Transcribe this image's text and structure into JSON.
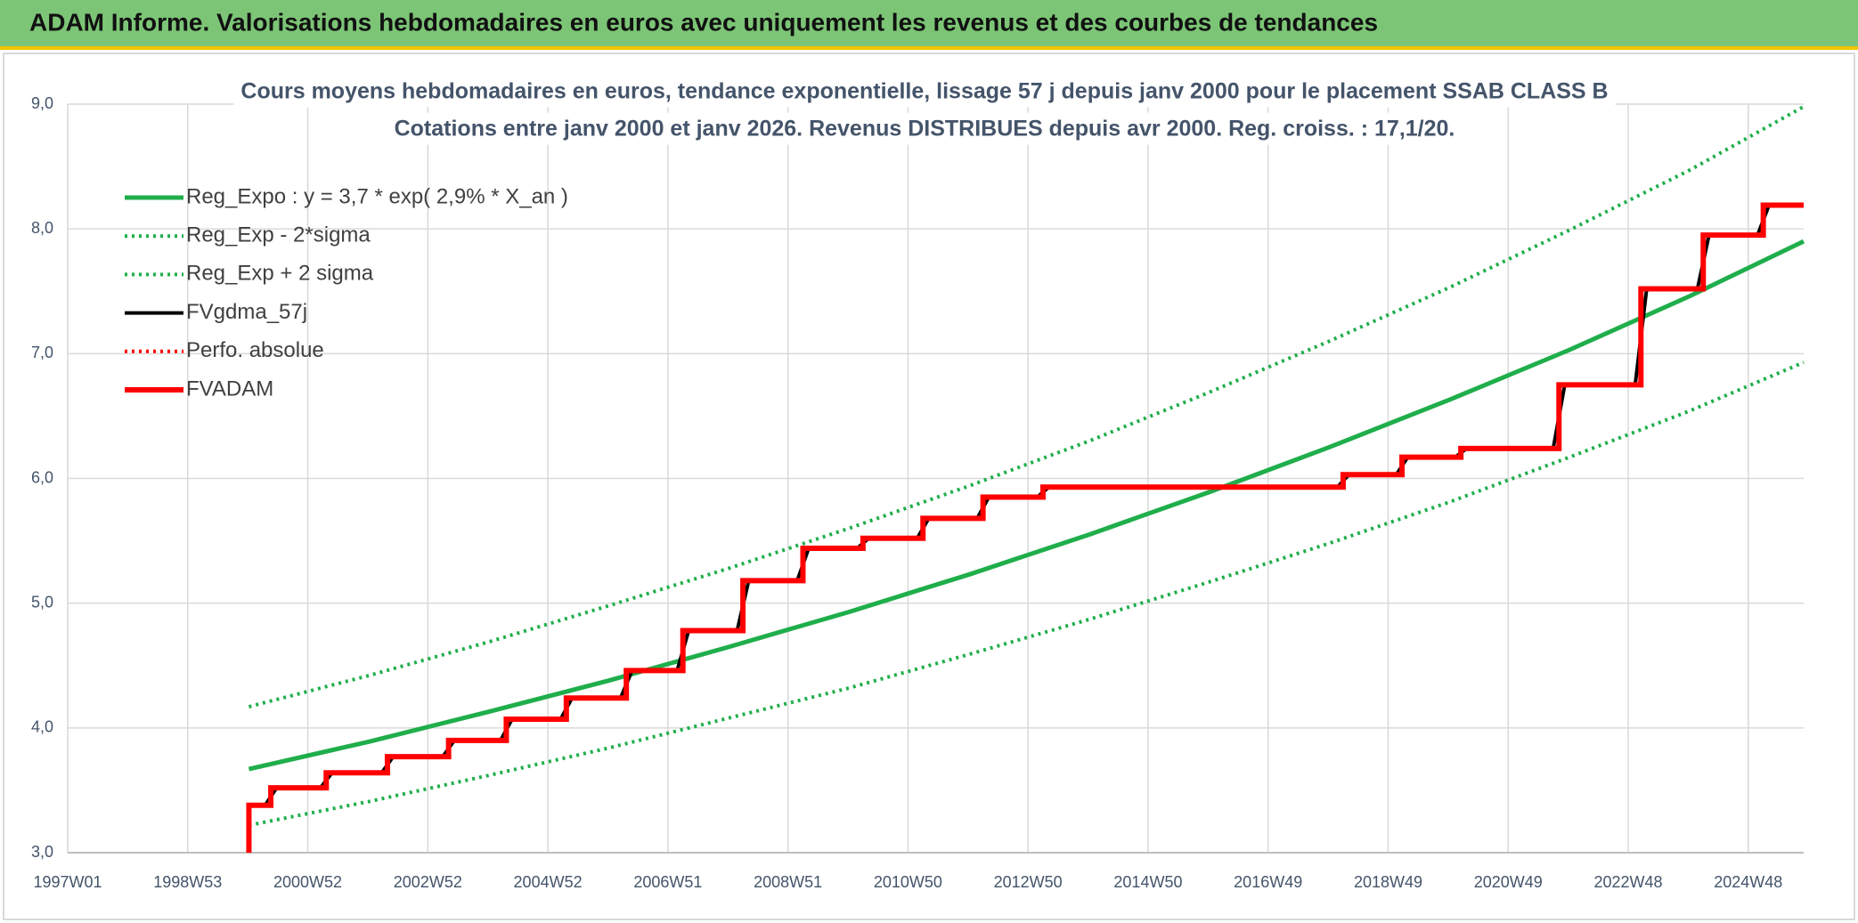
{
  "banner": {
    "title": "ADAM Informe. Valorisations hebdomadaires en euros avec uniquement les revenus et des courbes de tendances"
  },
  "chart_data": {
    "type": "line",
    "title": "Cours moyens hebdomadaires en euros, tendance exponentielle, lissage 57 j depuis janv 2000 pour le placement SSAB CLASS B",
    "subtitle": "Cotations entre janv 2000 et janv 2026. Revenus DISTRIBUES depuis avr 2000. Reg. croiss. : 17,1/20.",
    "xlim": [
      0,
      1504
    ],
    "xticks": [
      {
        "value": 0,
        "label": "1997W01"
      },
      {
        "value": 104,
        "label": "1998W53"
      },
      {
        "value": 208,
        "label": "2000W52"
      },
      {
        "value": 312,
        "label": "2002W52"
      },
      {
        "value": 416,
        "label": "2004W52"
      },
      {
        "value": 520,
        "label": "2006W51"
      },
      {
        "value": 624,
        "label": "2008W51"
      },
      {
        "value": 728,
        "label": "2010W50"
      },
      {
        "value": 832,
        "label": "2012W50"
      },
      {
        "value": 936,
        "label": "2014W50"
      },
      {
        "value": 1040,
        "label": "2016W49"
      },
      {
        "value": 1144,
        "label": "2018W49"
      },
      {
        "value": 1248,
        "label": "2020W49"
      },
      {
        "value": 1352,
        "label": "2022W48"
      },
      {
        "value": 1456,
        "label": "2024W48"
      }
    ],
    "ylim": [
      3,
      9
    ],
    "yticks": [
      {
        "value": 3,
        "label": "3,0"
      },
      {
        "value": 4,
        "label": "4,0"
      },
      {
        "value": 5,
        "label": "5,0"
      },
      {
        "value": 6,
        "label": "6,0"
      },
      {
        "value": 7,
        "label": "7,0"
      },
      {
        "value": 8,
        "label": "8,0"
      },
      {
        "value": 9,
        "label": "9,0"
      }
    ],
    "grid": true,
    "series": [
      {
        "name": "Reg_Expo : y = 3,7 * exp( 2,9% *  X_an )",
        "color": "#1fae4b",
        "style": "solid",
        "width": 5,
        "x": [
          157,
          261,
          365,
          469,
          573,
          677,
          781,
          885,
          989,
          1093,
          1197,
          1301,
          1405,
          1504
        ],
        "values": [
          3.67,
          3.89,
          4.13,
          4.38,
          4.65,
          4.93,
          5.23,
          5.55,
          5.89,
          6.25,
          6.63,
          7.03,
          7.46,
          7.9
        ]
      },
      {
        "name": "Reg_Exp - 2*sigma",
        "color": "#1fae4b",
        "style": "dotted",
        "width": 4,
        "x": [
          157,
          261,
          365,
          469,
          573,
          677,
          781,
          885,
          989,
          1093,
          1197,
          1301,
          1405,
          1504
        ],
        "values": [
          3.22,
          3.41,
          3.62,
          3.84,
          4.08,
          4.32,
          4.59,
          4.87,
          5.17,
          5.48,
          5.81,
          6.17,
          6.54,
          6.93
        ]
      },
      {
        "name": "Reg_Exp + 2 sigma",
        "color": "#1fae4b",
        "style": "dotted",
        "width": 4,
        "x": [
          157,
          261,
          365,
          469,
          573,
          677,
          781,
          885,
          989,
          1093,
          1197,
          1301,
          1405,
          1504
        ],
        "values": [
          4.17,
          4.42,
          4.69,
          4.98,
          5.28,
          5.6,
          5.94,
          6.3,
          6.69,
          7.1,
          7.53,
          7.99,
          8.47,
          8.98
        ]
      },
      {
        "name": "FVgdma_57j",
        "color": "#000000",
        "style": "solid",
        "width": 4,
        "x": [
          157,
          171,
          181,
          219,
          229,
          272,
          282,
          325,
          335,
          375,
          385,
          427,
          437,
          479,
          489,
          528,
          538,
          580,
          590,
          632,
          642,
          684,
          694,
          736,
          746,
          788,
          798,
          840,
          850,
          1100,
          1110,
          1151,
          1161,
          1202,
          1212,
          1287,
          1297,
          1358,
          1368,
          1412,
          1422,
          1464,
          1474,
          1504
        ],
        "values": [
          3.38,
          3.38,
          3.52,
          3.52,
          3.64,
          3.64,
          3.77,
          3.77,
          3.9,
          3.9,
          4.07,
          4.07,
          4.24,
          4.24,
          4.46,
          4.46,
          4.78,
          4.78,
          5.18,
          5.18,
          5.44,
          5.44,
          5.52,
          5.52,
          5.68,
          5.68,
          5.85,
          5.85,
          5.93,
          5.93,
          6.03,
          6.03,
          6.17,
          6.17,
          6.24,
          6.24,
          6.75,
          6.75,
          7.52,
          7.52,
          7.95,
          7.95,
          8.19,
          8.19
        ]
      },
      {
        "name": "Perfo. absolue",
        "color": "#ff0000",
        "style": "dotted",
        "width": 4,
        "x": [
          157,
          157,
          176,
          176,
          224,
          224,
          277,
          277,
          330,
          330,
          380,
          380,
          432,
          432,
          484,
          484,
          533,
          533,
          585,
          585,
          637,
          637,
          689,
          689,
          741,
          741,
          793,
          793,
          845,
          845,
          1105,
          1105,
          1156,
          1156,
          1207,
          1207,
          1292,
          1292,
          1363,
          1363,
          1417,
          1417,
          1469,
          1469,
          1504
        ],
        "values": [
          3.0,
          3.38,
          3.38,
          3.52,
          3.52,
          3.64,
          3.64,
          3.77,
          3.77,
          3.9,
          3.9,
          4.07,
          4.07,
          4.24,
          4.24,
          4.46,
          4.46,
          4.78,
          4.78,
          5.18,
          5.18,
          5.44,
          5.44,
          5.52,
          5.52,
          5.68,
          5.68,
          5.85,
          5.85,
          5.93,
          5.93,
          6.03,
          6.03,
          6.17,
          6.17,
          6.24,
          6.24,
          6.75,
          6.75,
          7.52,
          7.52,
          7.95,
          7.95,
          8.19,
          8.19
        ]
      },
      {
        "name": "FVADAM",
        "color": "#ff0000",
        "style": "solid",
        "width": 6,
        "x": [
          157,
          157,
          176,
          176,
          224,
          224,
          277,
          277,
          330,
          330,
          380,
          380,
          432,
          432,
          484,
          484,
          533,
          533,
          585,
          585,
          637,
          637,
          689,
          689,
          741,
          741,
          793,
          793,
          845,
          845,
          1105,
          1105,
          1156,
          1156,
          1207,
          1207,
          1292,
          1292,
          1363,
          1363,
          1417,
          1417,
          1469,
          1469,
          1504
        ],
        "values": [
          3.0,
          3.38,
          3.38,
          3.52,
          3.52,
          3.64,
          3.64,
          3.77,
          3.77,
          3.9,
          3.9,
          4.07,
          4.07,
          4.24,
          4.24,
          4.46,
          4.46,
          4.78,
          4.78,
          5.18,
          5.18,
          5.44,
          5.44,
          5.52,
          5.52,
          5.68,
          5.68,
          5.85,
          5.85,
          5.93,
          5.93,
          6.03,
          6.03,
          6.17,
          6.17,
          6.24,
          6.24,
          6.75,
          6.75,
          7.52,
          7.52,
          7.95,
          7.95,
          8.19,
          8.19
        ]
      }
    ]
  }
}
